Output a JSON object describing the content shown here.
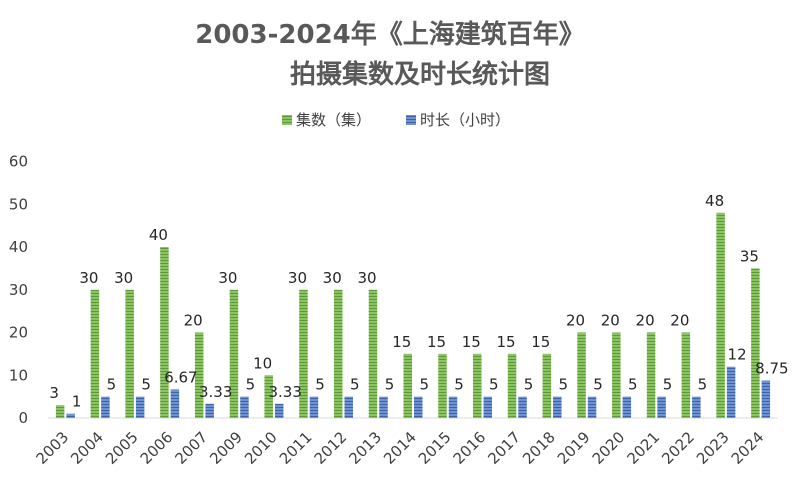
{
  "chart_data": {
    "type": "bar",
    "title": "2003-2024年《上海建筑百年》",
    "subtitle": "拍摄集数及时长统计图",
    "categories": [
      "2003",
      "2004",
      "2005",
      "2006",
      "2007",
      "2009",
      "2010",
      "2011",
      "2012",
      "2013",
      "2014",
      "2015",
      "2016",
      "2017",
      "2018",
      "2019",
      "2020",
      "2021",
      "2022",
      "2023",
      "2024"
    ],
    "series": [
      {
        "name": "集数（集）",
        "color": "#70ad47",
        "values": [
          3,
          30,
          30,
          40,
          20,
          30,
          10,
          30,
          30,
          30,
          15,
          15,
          15,
          15,
          15,
          20,
          20,
          20,
          20,
          48,
          35
        ],
        "labels": [
          "3",
          "30",
          "30",
          "40",
          "20",
          "30",
          "10",
          "30",
          "30",
          "30",
          "15",
          "15",
          "15",
          "15",
          "15",
          "20",
          "20",
          "20",
          "20",
          "48",
          "35"
        ]
      },
      {
        "name": "时长（小时）",
        "color": "#4472c4",
        "values": [
          1,
          5,
          5,
          6.67,
          3.33,
          5,
          3.33,
          5,
          5,
          5,
          5,
          5,
          5,
          5,
          5,
          5,
          5,
          5,
          5,
          12,
          8.75
        ],
        "labels": [
          "1",
          "5",
          "5",
          "6.67",
          "3.33",
          "5",
          "3.33",
          "5",
          "5",
          "5",
          "5",
          "5",
          "5",
          "5",
          "5",
          "5",
          "5",
          "5",
          "5",
          "12",
          "8.75"
        ]
      }
    ],
    "ylim": [
      0,
      60
    ],
    "yticks": [
      "0",
      "10",
      "20",
      "30",
      "40",
      "50",
      "60"
    ],
    "grid": false,
    "legend_position": "top-center"
  }
}
